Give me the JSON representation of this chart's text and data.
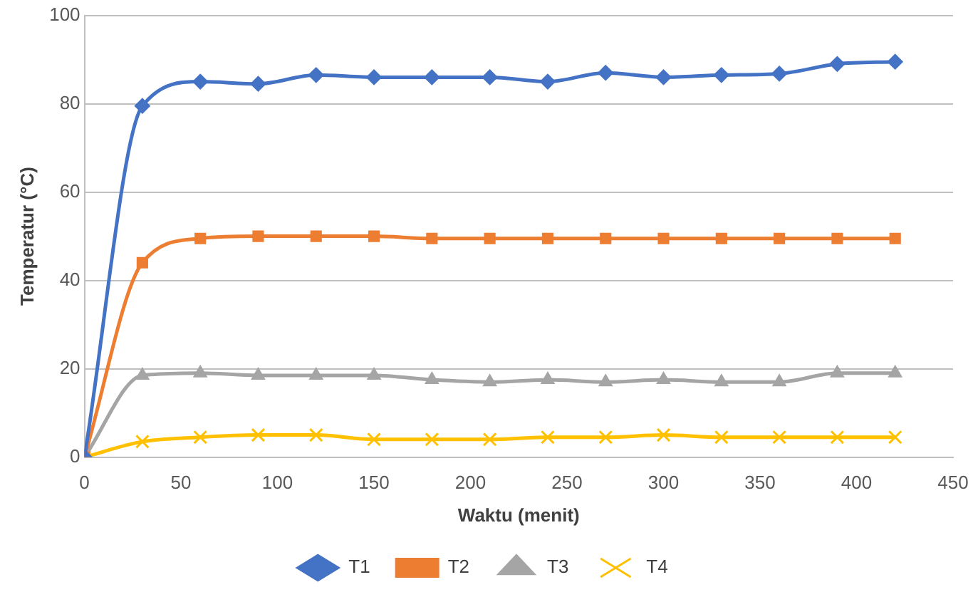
{
  "chart_data": {
    "type": "line",
    "xlabel": "Waktu (menit)",
    "ylabel": "Temperatur (°C)",
    "x": [
      0,
      30,
      60,
      90,
      120,
      150,
      180,
      210,
      240,
      270,
      300,
      330,
      360,
      390,
      420
    ],
    "xlim": [
      0,
      450
    ],
    "xticks": [
      0,
      50,
      100,
      150,
      200,
      250,
      300,
      350,
      400,
      450
    ],
    "ylim": [
      0,
      100
    ],
    "yticks": [
      0,
      20,
      40,
      60,
      80,
      100
    ],
    "grid": "y",
    "legend": "bottom",
    "series": [
      {
        "name": "T1",
        "color": "#4472c4",
        "marker": "diamond",
        "values": [
          0,
          79.5,
          85,
          84.5,
          86.5,
          86,
          86,
          86,
          85,
          87,
          86,
          86.5,
          86.8,
          89,
          89.5
        ]
      },
      {
        "name": "T2",
        "color": "#ed7d31",
        "marker": "square",
        "values": [
          0,
          44,
          49.5,
          50,
          50,
          50,
          49.5,
          49.5,
          49.5,
          49.5,
          49.5,
          49.5,
          49.5,
          49.5,
          49.5
        ]
      },
      {
        "name": "T3",
        "color": "#a5a5a5",
        "marker": "triangle",
        "values": [
          0,
          18.5,
          19,
          18.5,
          18.5,
          18.5,
          17.5,
          17,
          17.5,
          17,
          17.5,
          17,
          17,
          19,
          19
        ]
      },
      {
        "name": "T4",
        "color": "#ffc000",
        "marker": "cross",
        "values": [
          0,
          3.5,
          4.5,
          5,
          5,
          4,
          4,
          4,
          4.5,
          4.5,
          5,
          4.5,
          4.5,
          4.5,
          4.5
        ]
      }
    ]
  }
}
